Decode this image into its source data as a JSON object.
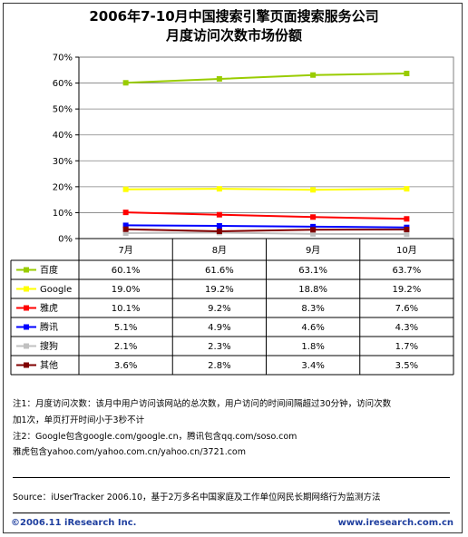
{
  "title_lines": [
    "2006年7-10月中国搜索引擎页面搜索服务公司",
    "月度访问次数市场份额"
  ],
  "chart_data": {
    "type": "line",
    "title": "2006年7-10月中国搜索引擎页面搜索服务公司 月度访问次数市场份额",
    "categories": [
      "7月",
      "8月",
      "9月",
      "10月"
    ],
    "y_ticks": [
      "70%",
      "60%",
      "50%",
      "40%",
      "30%",
      "20%",
      "10%",
      "0%"
    ],
    "ylim": [
      0,
      70
    ],
    "grid": true,
    "legend": "table-below",
    "series": [
      {
        "name": "百度",
        "color": "#99cc00",
        "values": [
          60.1,
          61.6,
          63.1,
          63.7
        ],
        "labels": [
          "60.1%",
          "61.6%",
          "63.1%",
          "63.7%"
        ]
      },
      {
        "name": "Google",
        "color": "#ffff00",
        "values": [
          19.0,
          19.2,
          18.8,
          19.2
        ],
        "labels": [
          "19.0%",
          "19.2%",
          "18.8%",
          "19.2%"
        ]
      },
      {
        "name": "雅虎",
        "color": "#ff0000",
        "values": [
          10.1,
          9.2,
          8.3,
          7.6
        ],
        "labels": [
          "10.1%",
          "9.2%",
          "8.3%",
          "7.6%"
        ]
      },
      {
        "name": "腾讯",
        "color": "#0000ff",
        "values": [
          5.1,
          4.9,
          4.6,
          4.3
        ],
        "labels": [
          "5.1%",
          "4.9%",
          "4.6%",
          "4.3%"
        ]
      },
      {
        "name": "搜狗",
        "color": "#c0c0c0",
        "values": [
          2.1,
          2.3,
          1.8,
          1.7
        ],
        "labels": [
          "2.1%",
          "2.3%",
          "1.8%",
          "1.7%"
        ]
      },
      {
        "name": "其他",
        "color": "#800000",
        "values": [
          3.6,
          2.8,
          3.4,
          3.5
        ],
        "labels": [
          "3.6%",
          "2.8%",
          "3.4%",
          "3.5%"
        ]
      }
    ]
  },
  "notes": {
    "note1_line1": "注1：月度访问次数：该月中用户访问该网站的总次数，用户访问的时间间隔超过30分钟，访问次数",
    "note1_line2": "加1次，单页打开时间小于3秒不计",
    "note2_line1": "注2：Google包含google.com/google.cn，腾讯包含qq.com/soso.com",
    "note2_line2": "雅虎包含yahoo.com/yahoo.com.cn/yahoo.cn/3721.com"
  },
  "source": "Source：iUserTracker 2006.10，基于2万多名中国家庭及工作单位网民长期网络行为监测方法",
  "footer": {
    "copyright": "©2006.11 iResearch Inc.",
    "website": "www.iresearch.com.cn"
  }
}
